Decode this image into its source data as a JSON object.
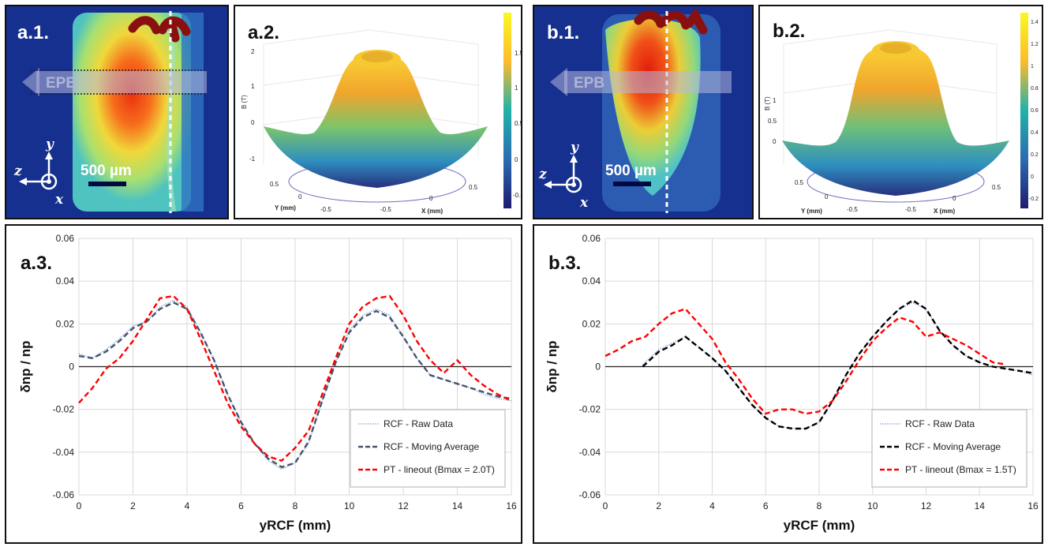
{
  "panels": {
    "a1": {
      "label": "a.1.",
      "arrow_label": "EPB",
      "scale_bar": "500 µm",
      "axes": {
        "y": "y",
        "z": "z",
        "x": "x"
      }
    },
    "a2": {
      "label": "a.2.",
      "z_axis_label": "B (T)",
      "x_axis_label": "X (mm)",
      "y_axis_label": "Y (mm)",
      "z_ticks": [
        "2",
        "1",
        "0",
        "-1"
      ],
      "x_ticks": [
        "-0.5",
        "0",
        "0.5"
      ],
      "y_ticks": [
        "0.5",
        "0",
        "-0.5"
      ],
      "colorbar_ticks": [
        "1.5",
        "1",
        "0.5",
        "0",
        "-0.5"
      ]
    },
    "b1": {
      "label": "b.1.",
      "arrow_label": "EPB",
      "scale_bar": "500 µm",
      "axes": {
        "y": "y",
        "z": "z",
        "x": "x"
      }
    },
    "b2": {
      "label": "b.2.",
      "z_axis_label": "B (T)",
      "x_axis_label": "X (mm)",
      "y_axis_label": "Y (mm)",
      "z_ticks": [
        "1",
        "0.5",
        "0"
      ],
      "x_ticks": [
        "-0.5",
        "0",
        "0.5"
      ],
      "y_ticks": [
        "0.5",
        "0",
        "-0.5"
      ],
      "colorbar_ticks": [
        "1.4",
        "1.2",
        "1",
        "0.8",
        "0.6",
        "0.4",
        "0.2",
        "0",
        "-0.2"
      ]
    },
    "a3": {
      "label": "a.3."
    },
    "b3": {
      "label": "b.3."
    }
  },
  "chart_data": [
    {
      "id": "a3",
      "type": "line",
      "xlabel": "yRCF (mm)",
      "ylabel": "δnp / np",
      "xlim": [
        0,
        16
      ],
      "ylim": [
        -0.06,
        0.06
      ],
      "x_ticks": [
        0,
        2,
        4,
        6,
        8,
        10,
        12,
        14,
        16
      ],
      "y_ticks": [
        0.06,
        0.04,
        0.02,
        0,
        -0.02,
        -0.04,
        -0.06
      ],
      "y_tick_labels": [
        "0.06",
        "0.04",
        "0.02",
        "0",
        "-0.02",
        "-0.04",
        "-0.06"
      ],
      "grid": true,
      "legend_position": "bottom-right",
      "series": [
        {
          "name": "RCF - Raw Data",
          "style": "dotted",
          "color": "#7f9bd0",
          "x": [
            0,
            0.5,
            1,
            1.5,
            2,
            2.5,
            3,
            3.5,
            4,
            4.5,
            5,
            5.5,
            6,
            6.5,
            7,
            7.5,
            8,
            8.5,
            9,
            9.5,
            10,
            10.5,
            11,
            11.5,
            12,
            12.5,
            13,
            13.5,
            14,
            14.5,
            15,
            15.5,
            16
          ],
          "y": [
            0.006,
            0.004,
            0.008,
            0.013,
            0.019,
            0.021,
            0.028,
            0.031,
            0.028,
            0.016,
            0.003,
            -0.013,
            -0.026,
            -0.036,
            -0.044,
            -0.048,
            -0.045,
            -0.036,
            -0.016,
            0.002,
            0.017,
            0.024,
            0.027,
            0.024,
            0.014,
            0.004,
            -0.004,
            -0.006,
            -0.008,
            -0.01,
            -0.013,
            -0.015,
            -0.016
          ]
        },
        {
          "name": "RCF - Moving Average",
          "style": "dashed",
          "color": "#44546a",
          "x": [
            0,
            0.5,
            1,
            1.5,
            2,
            2.5,
            3,
            3.5,
            4,
            4.5,
            5,
            5.5,
            6,
            6.5,
            7,
            7.5,
            8,
            8.5,
            9,
            9.5,
            10,
            10.5,
            11,
            11.5,
            12,
            12.5,
            13,
            13.5,
            14,
            14.5,
            15,
            15.5,
            16
          ],
          "y": [
            0.005,
            0.004,
            0.007,
            0.012,
            0.018,
            0.021,
            0.027,
            0.03,
            0.027,
            0.016,
            0.003,
            -0.013,
            -0.026,
            -0.036,
            -0.043,
            -0.047,
            -0.045,
            -0.035,
            -0.016,
            0.002,
            0.016,
            0.023,
            0.026,
            0.023,
            0.014,
            0.004,
            -0.004,
            -0.006,
            -0.008,
            -0.01,
            -0.012,
            -0.014,
            -0.015
          ]
        },
        {
          "name": "PT - lineout (Bmax = 2.0T)",
          "style": "dashed",
          "color": "#ff0000",
          "x": [
            0,
            0.5,
            1,
            1.5,
            2,
            2.5,
            3,
            3.5,
            4,
            4.5,
            5,
            5.5,
            6,
            6.5,
            7,
            7.5,
            8,
            8.5,
            9,
            9.5,
            10,
            10.5,
            11,
            11.5,
            12,
            12.5,
            13,
            13.5,
            14,
            14.5,
            15,
            15.5,
            16
          ],
          "y": [
            -0.017,
            -0.01,
            -0.001,
            0.004,
            0.012,
            0.022,
            0.032,
            0.033,
            0.027,
            0.013,
            -0.002,
            -0.017,
            -0.028,
            -0.036,
            -0.042,
            -0.044,
            -0.038,
            -0.03,
            -0.013,
            0.004,
            0.02,
            0.028,
            0.032,
            0.033,
            0.024,
            0.012,
            0.003,
            -0.003,
            0.003,
            -0.004,
            -0.009,
            -0.013,
            -0.016
          ]
        }
      ]
    },
    {
      "id": "b3",
      "type": "line",
      "xlabel": "yRCF (mm)",
      "ylabel": "δnp / np",
      "xlim": [
        0,
        16
      ],
      "ylim": [
        -0.06,
        0.06
      ],
      "x_ticks": [
        0,
        2,
        4,
        6,
        8,
        10,
        12,
        14,
        16
      ],
      "y_ticks": [
        0.06,
        0.04,
        0.02,
        0,
        -0.02,
        -0.04,
        -0.06
      ],
      "y_tick_labels": [
        "0.06",
        "0.04",
        "0.02",
        "0",
        "-0.02",
        "-0.04",
        "-0.06"
      ],
      "grid": true,
      "legend_position": "bottom-right",
      "series": [
        {
          "name": "RCF - Raw Data",
          "style": "dotted",
          "color": "#7f9bd0",
          "x": [
            1.4,
            2,
            2.5,
            3,
            3.5,
            4,
            4.5,
            5,
            5.5,
            6,
            6.5,
            7,
            7.5,
            8,
            8.5,
            9,
            9.5,
            10,
            10.5,
            11,
            11.5,
            12,
            12.5,
            13,
            13.5,
            14,
            14.5,
            15,
            15.5,
            16
          ],
          "y": [
            0.001,
            0.008,
            0.011,
            0.014,
            0.009,
            0.004,
            -0.002,
            -0.01,
            -0.018,
            -0.024,
            -0.028,
            -0.029,
            -0.029,
            -0.026,
            -0.016,
            -0.004,
            0.006,
            0.014,
            0.021,
            0.027,
            0.03,
            0.027,
            0.017,
            0.01,
            0.005,
            0.002,
            0.0,
            -0.001,
            -0.002,
            -0.004
          ]
        },
        {
          "name": "RCF - Moving Average",
          "style": "dashed",
          "color": "#000000",
          "x": [
            1.4,
            2,
            2.5,
            3,
            3.5,
            4,
            4.5,
            5,
            5.5,
            6,
            6.5,
            7,
            7.5,
            8,
            8.5,
            9,
            9.5,
            10,
            10.5,
            11,
            11.5,
            12,
            12.5,
            13,
            13.5,
            14,
            14.5,
            15,
            15.5,
            16
          ],
          "y": [
            0.0,
            0.007,
            0.01,
            0.014,
            0.009,
            0.004,
            -0.002,
            -0.01,
            -0.018,
            -0.024,
            -0.028,
            -0.029,
            -0.029,
            -0.026,
            -0.016,
            -0.004,
            0.006,
            0.014,
            0.021,
            0.027,
            0.031,
            0.027,
            0.017,
            0.01,
            0.005,
            0.002,
            0.0,
            -0.001,
            -0.002,
            -0.003
          ]
        },
        {
          "name": "PT - lineout (Bmax = 1.5T)",
          "style": "dashed",
          "color": "#ff0000",
          "x": [
            0,
            0.5,
            1,
            1.5,
            2,
            2.5,
            3,
            3.5,
            4,
            4.5,
            5,
            5.5,
            6,
            6.5,
            7,
            7.5,
            8,
            8.5,
            9,
            9.5,
            10,
            10.5,
            11,
            11.5,
            12,
            12.5,
            13,
            13.5,
            14,
            14.5,
            15
          ],
          "y": [
            0.005,
            0.008,
            0.012,
            0.014,
            0.02,
            0.025,
            0.027,
            0.02,
            0.013,
            0.002,
            -0.006,
            -0.015,
            -0.022,
            -0.02,
            -0.02,
            -0.022,
            -0.021,
            -0.016,
            -0.007,
            0.003,
            0.012,
            0.018,
            0.023,
            0.021,
            0.014,
            0.016,
            0.013,
            0.01,
            0.006,
            0.002,
            0.001
          ]
        }
      ]
    }
  ]
}
